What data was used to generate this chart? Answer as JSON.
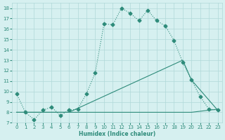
{
  "line1_x": [
    0,
    1,
    2,
    3,
    4,
    5,
    6,
    7,
    8,
    9,
    10,
    11,
    12,
    13,
    14,
    15,
    16,
    17,
    18,
    19,
    20,
    21,
    22,
    23
  ],
  "line1_y": [
    9.8,
    8.0,
    7.3,
    8.2,
    8.5,
    7.7,
    8.2,
    8.3,
    9.8,
    11.8,
    16.5,
    16.4,
    18.0,
    17.5,
    16.8,
    17.8,
    16.8,
    16.3,
    14.9,
    12.8,
    11.1,
    9.5,
    8.3,
    8.2
  ],
  "line2_x": [
    0,
    6,
    19,
    20,
    23
  ],
  "line2_y": [
    8.0,
    8.0,
    13.0,
    11.1,
    8.2
  ],
  "line3_x": [
    0,
    6,
    19,
    20,
    23
  ],
  "line3_y": [
    8.0,
    8.0,
    8.0,
    8.0,
    8.3
  ],
  "color": "#2e8b7a",
  "bg_color": "#d6f0f0",
  "grid_color": "#b0d8d8",
  "xlabel": "Humidex (Indice chaleur)",
  "xlim": [
    -0.5,
    23.5
  ],
  "ylim": [
    7.0,
    18.5
  ],
  "yticks": [
    7,
    8,
    9,
    10,
    11,
    12,
    13,
    14,
    15,
    16,
    17,
    18
  ],
  "xticks": [
    0,
    1,
    2,
    3,
    4,
    5,
    6,
    7,
    8,
    9,
    10,
    11,
    12,
    13,
    14,
    15,
    16,
    17,
    18,
    19,
    20,
    21,
    22,
    23
  ],
  "markersize": 2.5,
  "linewidth": 0.8
}
